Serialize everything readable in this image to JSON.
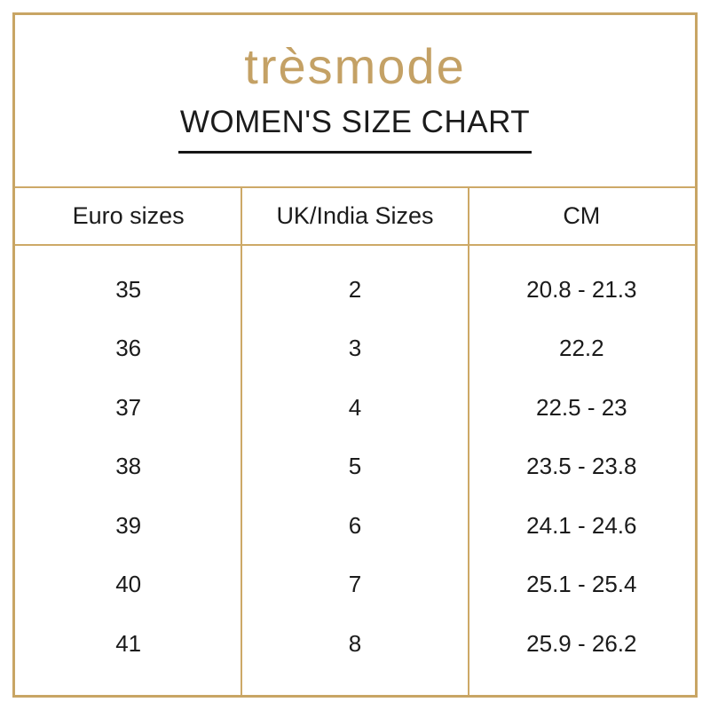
{
  "brand": {
    "logo_text": "trèsmode"
  },
  "title": "WOMEN'S SIZE CHART",
  "chart_data": {
    "type": "table",
    "title": "WOMEN'S SIZE CHART",
    "columns": [
      "Euro sizes",
      "UK/India Sizes",
      "CM"
    ],
    "rows": [
      [
        "35",
        "2",
        "20.8 - 21.3"
      ],
      [
        "36",
        "3",
        "22.2"
      ],
      [
        "37",
        "4",
        "22.5 - 23"
      ],
      [
        "38",
        "5",
        "23.5 - 23.8"
      ],
      [
        "39",
        "6",
        "24.1 - 24.6"
      ],
      [
        "40",
        "7",
        "25.1 - 25.4"
      ],
      [
        "41",
        "8",
        "25.9 - 26.2"
      ]
    ]
  },
  "colors": {
    "frame_gold": "#C8A564",
    "line_gold": "#CDA967",
    "logo_gold": "#C4A165",
    "text": "#1B1B1B",
    "background": "#FFFFFF"
  }
}
